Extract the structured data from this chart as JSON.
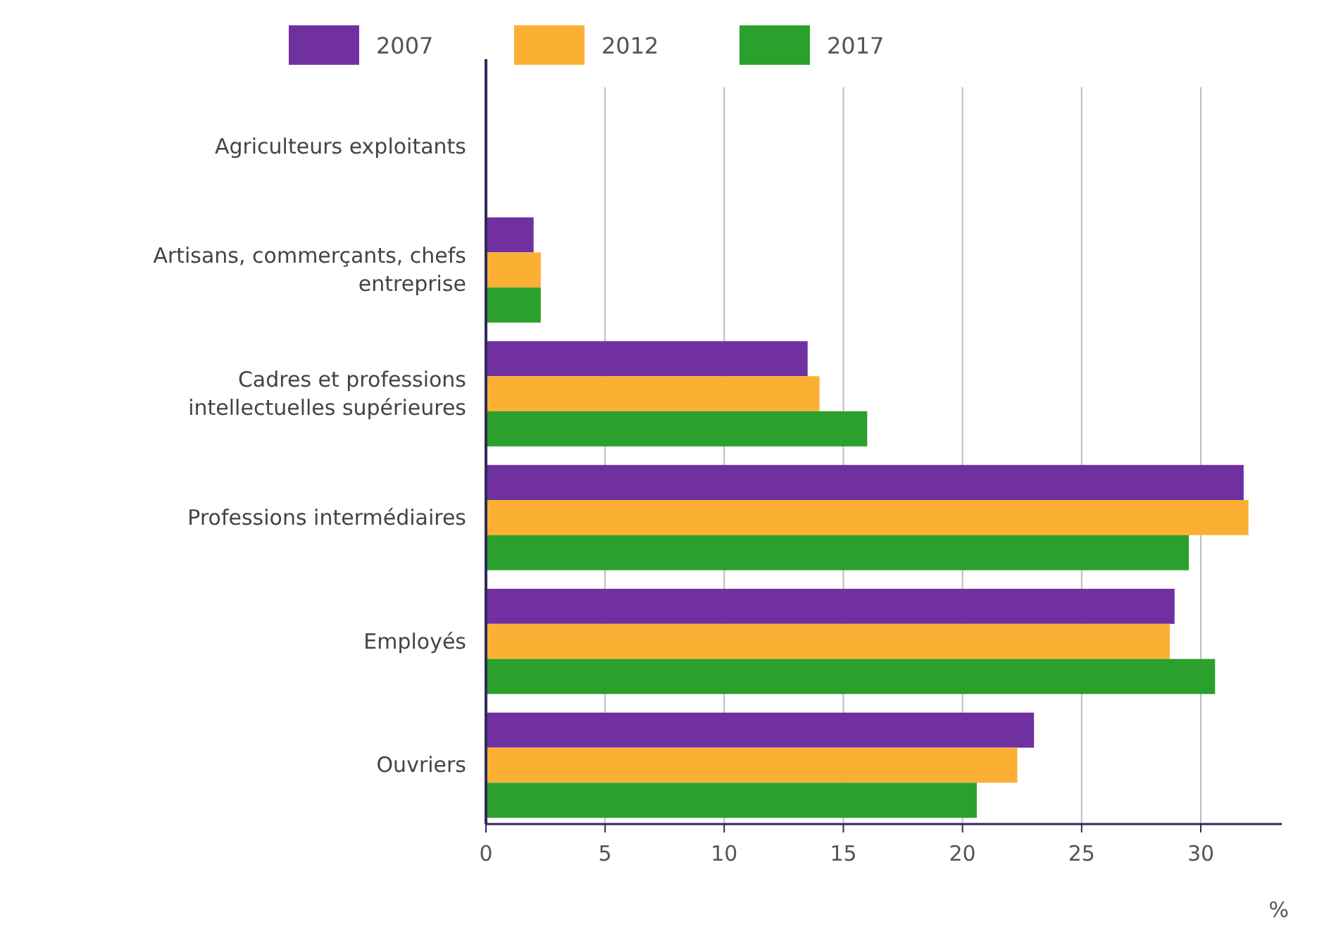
{
  "chart_data": {
    "type": "bar",
    "orientation": "horizontal",
    "xlabel": "%",
    "categories": [
      "Agriculteurs exploitants",
      "Artisans, commerçants, chefs entreprise",
      "Cadres et professions intellectuelles supérieures",
      "Professions intermédiaires",
      "Employés",
      "Ouvriers"
    ],
    "series": [
      {
        "name": "2007",
        "color": "#7030a0",
        "values": [
          0,
          2.0,
          13.5,
          31.8,
          28.9,
          23.0
        ]
      },
      {
        "name": "2012",
        "color": "#fbb034",
        "values": [
          0,
          2.3,
          14.0,
          32.0,
          28.7,
          22.3
        ]
      },
      {
        "name": "2017",
        "color": "#2ca02c",
        "values": [
          0,
          2.3,
          16.0,
          29.5,
          30.6,
          20.6
        ]
      }
    ],
    "xlim": [
      0,
      33.4
    ],
    "xticks": [
      0,
      5,
      10,
      15,
      20,
      25,
      30
    ],
    "grid": "x",
    "legend": "top"
  }
}
